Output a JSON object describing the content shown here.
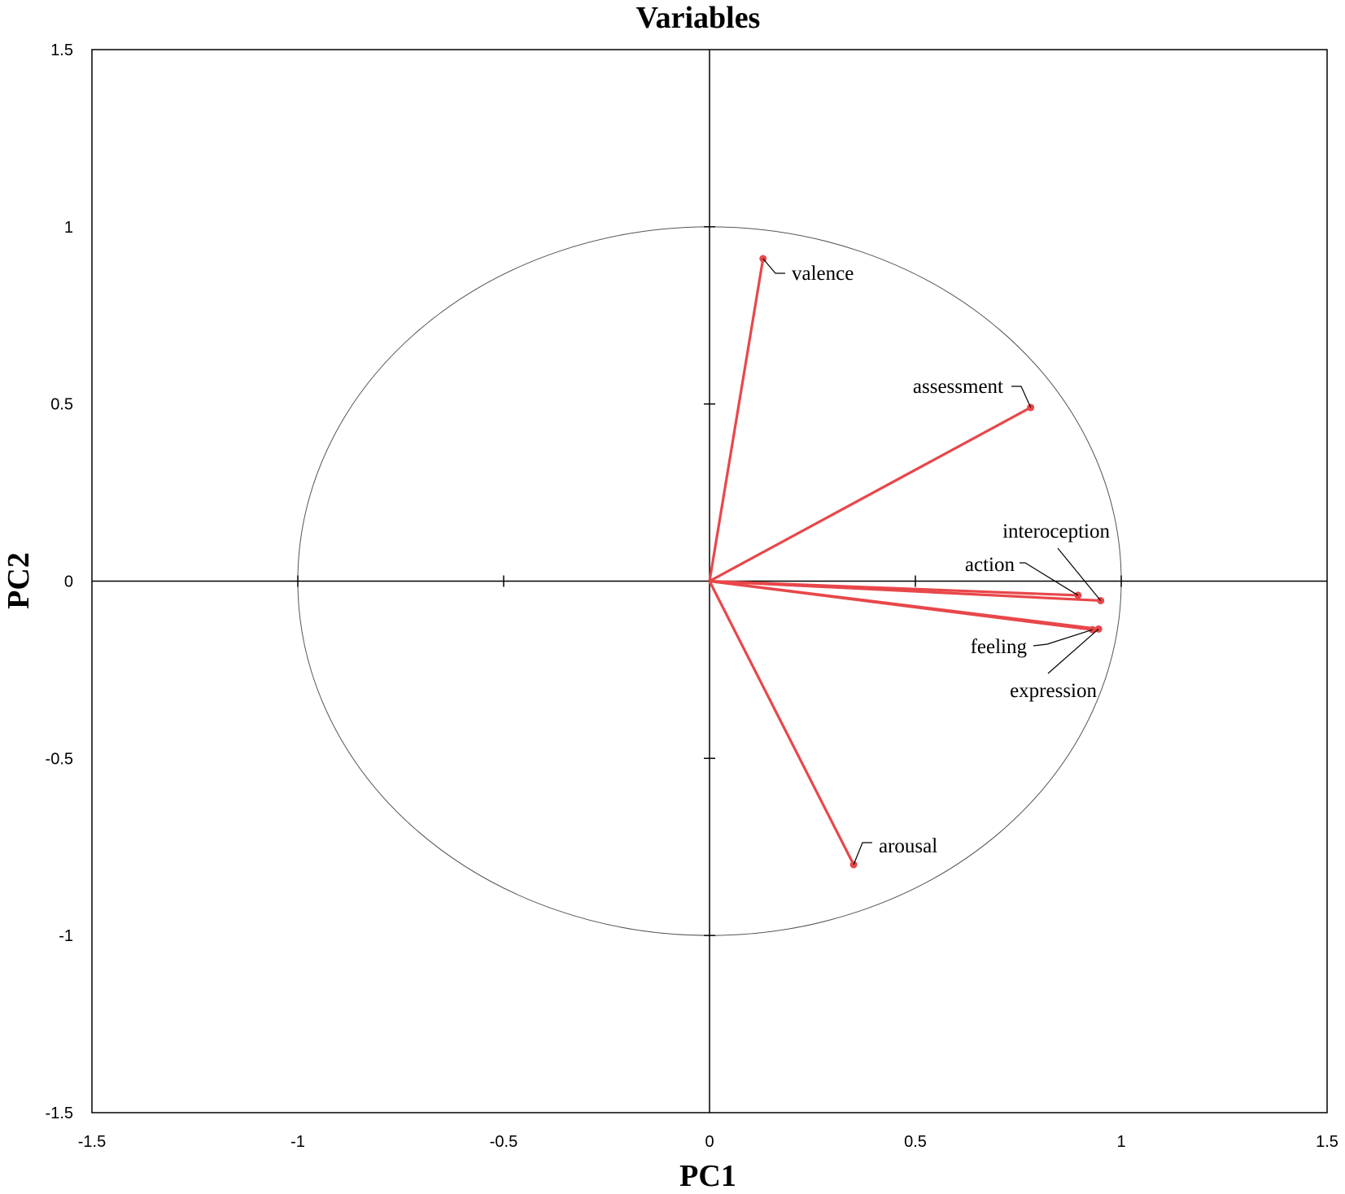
{
  "chart_data": {
    "type": "scatter",
    "title": "Variables",
    "xlabel": "PC1",
    "ylabel": "PC2",
    "xlim": [
      -1.5,
      1.5
    ],
    "ylim": [
      -1.5,
      1.5
    ],
    "x_ticks": [
      -1.5,
      -1,
      -0.5,
      0,
      0.5,
      1,
      1.5
    ],
    "y_ticks": [
      -1.5,
      -1,
      -0.5,
      0,
      0.5,
      1,
      1.5
    ],
    "x_tick_labels": [
      "-1.5",
      "-1",
      "-0.5",
      "0",
      "0.5",
      "1",
      "1.5"
    ],
    "y_tick_labels": [
      "-1.5",
      "-1",
      "-0.5",
      "0",
      "0.5",
      "1",
      "1.5"
    ],
    "correlation_circle": true,
    "grid": false,
    "vector_color": "#e8474a",
    "points": [
      {
        "label": "valence",
        "x": 0.13,
        "y": 0.91
      },
      {
        "label": "assessment",
        "x": 0.78,
        "y": 0.49
      },
      {
        "label": "interoception",
        "x": 0.95,
        "y": -0.055
      },
      {
        "label": "action",
        "x": 0.895,
        "y": -0.04
      },
      {
        "label": "feeling",
        "x": 0.93,
        "y": -0.137
      },
      {
        "label": "expression",
        "x": 0.945,
        "y": -0.135
      },
      {
        "label": "arousal",
        "x": 0.35,
        "y": -0.8
      }
    ]
  }
}
